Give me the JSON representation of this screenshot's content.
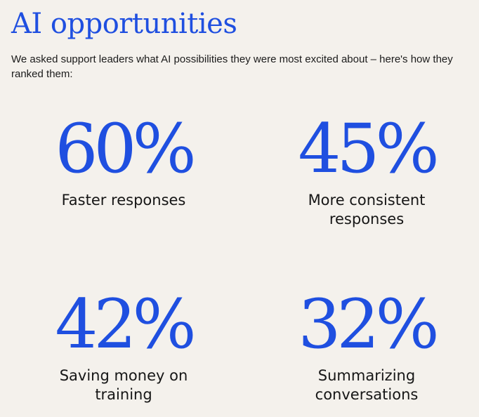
{
  "header": {
    "title": "AI opportunities",
    "subtitle": "We asked support leaders what AI possibilities they were most excited about – here's how they ranked them:"
  },
  "stats": [
    {
      "value": "60%",
      "label": "Faster responses"
    },
    {
      "value": "45%",
      "label": "More consistent responses"
    },
    {
      "value": "42%",
      "label": "Saving money on training"
    },
    {
      "value": "32%",
      "label": "Summarizing conversations"
    }
  ],
  "colors": {
    "accent": "#1f4fe0",
    "background": "#f4f1ec",
    "text": "#161616"
  }
}
